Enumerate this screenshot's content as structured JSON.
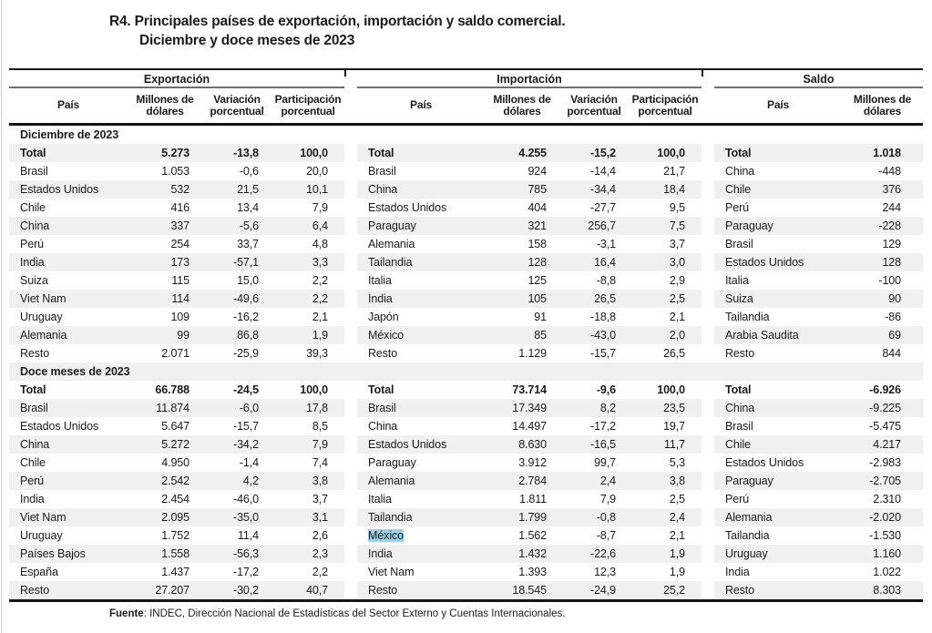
{
  "title": {
    "line1": "R4. Principales países de exportación, importación y saldo comercial.",
    "line2": "Diciembre y doce meses de 2023"
  },
  "footer": {
    "bold": "Fuente",
    "text": ": INDEC, Dirección Nacional de Estadísticas del Sector Externo y Cuentas Internacionales."
  },
  "highlight": {
    "word": "México",
    "color": "#9fd0e6"
  },
  "table": {
    "groups": [
      {
        "name": "Exportación",
        "columns": [
          "País",
          "Millones de dólares",
          "Variación porcentual",
          "Participación porcentual"
        ]
      },
      {
        "name": "Importación",
        "columns": [
          "País",
          "Millones de dólares",
          "Variación porcentual",
          "Participación porcentual"
        ]
      },
      {
        "name": "Saldo",
        "columns": [
          "País",
          "Millones de dólares"
        ]
      }
    ],
    "sections": [
      {
        "label": "Diciembre de 2023",
        "rows": [
          {
            "bold": true,
            "export": [
              "Total",
              "5.273",
              "-13,8",
              "100,0"
            ],
            "import": [
              "Total",
              "4.255",
              "-15,2",
              "100,0"
            ],
            "saldo": [
              "Total",
              "1.018"
            ]
          },
          {
            "export": [
              "Brasil",
              "1.053",
              "-0,6",
              "20,0"
            ],
            "import": [
              "Brasil",
              "924",
              "-14,4",
              "21,7"
            ],
            "saldo": [
              "China",
              "-448"
            ]
          },
          {
            "export": [
              "Estados Unidos",
              "532",
              "21,5",
              "10,1"
            ],
            "import": [
              "China",
              "785",
              "-34,4",
              "18,4"
            ],
            "saldo": [
              "Chile",
              "376"
            ]
          },
          {
            "export": [
              "Chile",
              "416",
              "13,4",
              "7,9"
            ],
            "import": [
              "Estados Unidos",
              "404",
              "-27,7",
              "9,5"
            ],
            "saldo": [
              "Perú",
              "244"
            ]
          },
          {
            "export": [
              "China",
              "337",
              "-5,6",
              "6,4"
            ],
            "import": [
              "Paraguay",
              "321",
              "256,7",
              "7,5"
            ],
            "saldo": [
              "Paraguay",
              "-228"
            ]
          },
          {
            "export": [
              "Perú",
              "254",
              "33,7",
              "4,8"
            ],
            "import": [
              "Alemania",
              "158",
              "-3,1",
              "3,7"
            ],
            "saldo": [
              "Brasil",
              "129"
            ]
          },
          {
            "export": [
              "India",
              "173",
              "-57,1",
              "3,3"
            ],
            "import": [
              "Tailandia",
              "128",
              "16,4",
              "3,0"
            ],
            "saldo": [
              "Estados Unidos",
              "128"
            ]
          },
          {
            "export": [
              "Suiza",
              "115",
              "15,0",
              "2,2"
            ],
            "import": [
              "Italia",
              "125",
              "-8,8",
              "2,9"
            ],
            "saldo": [
              "Italia",
              "-100"
            ]
          },
          {
            "export": [
              "Viet Nam",
              "114",
              "-49,6",
              "2,2"
            ],
            "import": [
              "India",
              "105",
              "26,5",
              "2,5"
            ],
            "saldo": [
              "Suiza",
              "90"
            ]
          },
          {
            "export": [
              "Uruguay",
              "109",
              "-16,2",
              "2,1"
            ],
            "import": [
              "Japón",
              "91",
              "-18,8",
              "2,1"
            ],
            "saldo": [
              "Tailandia",
              "-86"
            ]
          },
          {
            "export": [
              "Alemania",
              "99",
              "86,8",
              "1,9"
            ],
            "import": [
              "México",
              "85",
              "-43,0",
              "2,0"
            ],
            "saldo": [
              "Arabia Saudita",
              "69"
            ]
          },
          {
            "export": [
              "Resto",
              "2.071",
              "-25,9",
              "39,3"
            ],
            "import": [
              "Resto",
              "1.129",
              "-15,7",
              "26,5"
            ],
            "saldo": [
              "Resto",
              "844"
            ]
          }
        ]
      },
      {
        "label": "Doce meses de 2023",
        "rows": [
          {
            "bold": true,
            "export": [
              "Total",
              "66.788",
              "-24,5",
              "100,0"
            ],
            "import": [
              "Total",
              "73.714",
              "-9,6",
              "100,0"
            ],
            "saldo": [
              "Total",
              "-6.926"
            ]
          },
          {
            "export": [
              "Brasil",
              "11.874",
              "-6,0",
              "17,8"
            ],
            "import": [
              "Brasil",
              "17.349",
              "8,2",
              "23,5"
            ],
            "saldo": [
              "China",
              "-9.225"
            ]
          },
          {
            "export": [
              "Estados Unidos",
              "5.647",
              "-15,7",
              "8,5"
            ],
            "import": [
              "China",
              "14.497",
              "-17,2",
              "19,7"
            ],
            "saldo": [
              "Brasil",
              "-5.475"
            ]
          },
          {
            "export": [
              "China",
              "5.272",
              "-34,2",
              "7,9"
            ],
            "import": [
              "Estados Unidos",
              "8.630",
              "-16,5",
              "11,7"
            ],
            "saldo": [
              "Chile",
              "4.217"
            ]
          },
          {
            "export": [
              "Chile",
              "4.950",
              "-1,4",
              "7,4"
            ],
            "import": [
              "Paraguay",
              "3.912",
              "99,7",
              "5,3"
            ],
            "saldo": [
              "Estados Unidos",
              "-2.983"
            ]
          },
          {
            "export": [
              "Perú",
              "2.542",
              "4,2",
              "3,8"
            ],
            "import": [
              "Alemania",
              "2.784",
              "2,4",
              "3,8"
            ],
            "saldo": [
              "Paraguay",
              "-2.705"
            ]
          },
          {
            "export": [
              "India",
              "2.454",
              "-46,0",
              "3,7"
            ],
            "import": [
              "Italia",
              "1.811",
              "7,9",
              "2,5"
            ],
            "saldo": [
              "Perú",
              "2.310"
            ]
          },
          {
            "export": [
              "Viet Nam",
              "2.095",
              "-35,0",
              "3,1"
            ],
            "import": [
              "Tailandia",
              "1.799",
              "-0,8",
              "2,4"
            ],
            "saldo": [
              "Alemania",
              "-2.020"
            ]
          },
          {
            "hl": "import",
            "export": [
              "Uruguay",
              "1.752",
              "11,4",
              "2,6"
            ],
            "import": [
              "México",
              "1.562",
              "-8,7",
              "2,1"
            ],
            "saldo": [
              "Tailandia",
              "-1.530"
            ]
          },
          {
            "export": [
              "Países Bajos",
              "1.558",
              "-56,3",
              "2,3"
            ],
            "import": [
              "India",
              "1.432",
              "-22,6",
              "1,9"
            ],
            "saldo": [
              "Uruguay",
              "1.160"
            ]
          },
          {
            "export": [
              "España",
              "1.437",
              "-17,2",
              "2,2"
            ],
            "import": [
              "Viet Nam",
              "1.393",
              "12,3",
              "1,9"
            ],
            "saldo": [
              "India",
              "1.022"
            ]
          },
          {
            "export": [
              "Resto",
              "27.207",
              "-30,2",
              "40,7"
            ],
            "import": [
              "Resto",
              "18.545",
              "-24,9",
              "25,2"
            ],
            "saldo": [
              "Resto",
              "8.303"
            ]
          }
        ]
      }
    ]
  }
}
